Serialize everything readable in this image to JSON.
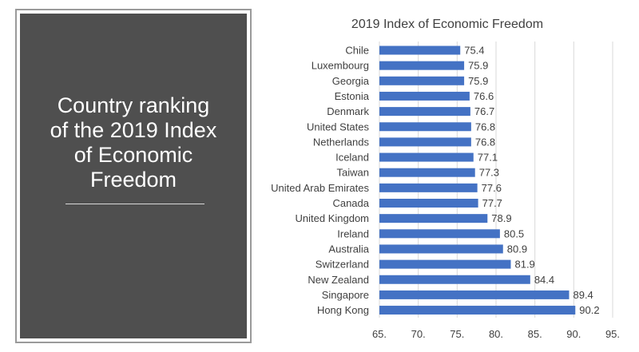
{
  "panel": {
    "title": "Country ranking\nof the 2019 Index\nof Economic\nFreedom"
  },
  "chart_data": {
    "type": "bar",
    "orientation": "horizontal",
    "title": "2019 Index of Economic Freedom",
    "categories": [
      "Chile",
      "Luxembourg",
      "Georgia",
      "Estonia",
      "Denmark",
      "United States",
      "Netherlands",
      "Iceland",
      "Taiwan",
      "United Arab Emirates",
      "Canada",
      "United Kingdom",
      "Ireland",
      "Australia",
      "Switzerland",
      "New Zealand",
      "Singapore",
      "Hong Kong"
    ],
    "values": [
      75.4,
      75.9,
      75.9,
      76.6,
      76.7,
      76.8,
      76.8,
      77.1,
      77.3,
      77.6,
      77.7,
      78.9,
      80.5,
      80.9,
      81.9,
      84.4,
      89.4,
      90.2
    ],
    "value_labels": [
      "75.4",
      "75.9",
      "75.9",
      "76.6",
      "76.7",
      "76.8",
      "76.8",
      "77.1",
      "77.3",
      "77.6",
      "77.7",
      "78.9",
      "80.5",
      "80.9",
      "81.9",
      "84.4",
      "89.4",
      "90.2"
    ],
    "xlim": [
      65,
      95
    ],
    "xticks": [
      65,
      70,
      75,
      80,
      85,
      90,
      95
    ],
    "xtick_labels": [
      "65.",
      "70.",
      "75.",
      "80.",
      "85.",
      "90.",
      "95."
    ],
    "xlabel": "",
    "ylabel": "",
    "grid": "vertical",
    "bar_color": "#4472c4",
    "grid_color": "#d9d9d9",
    "text_color": "#404040"
  }
}
